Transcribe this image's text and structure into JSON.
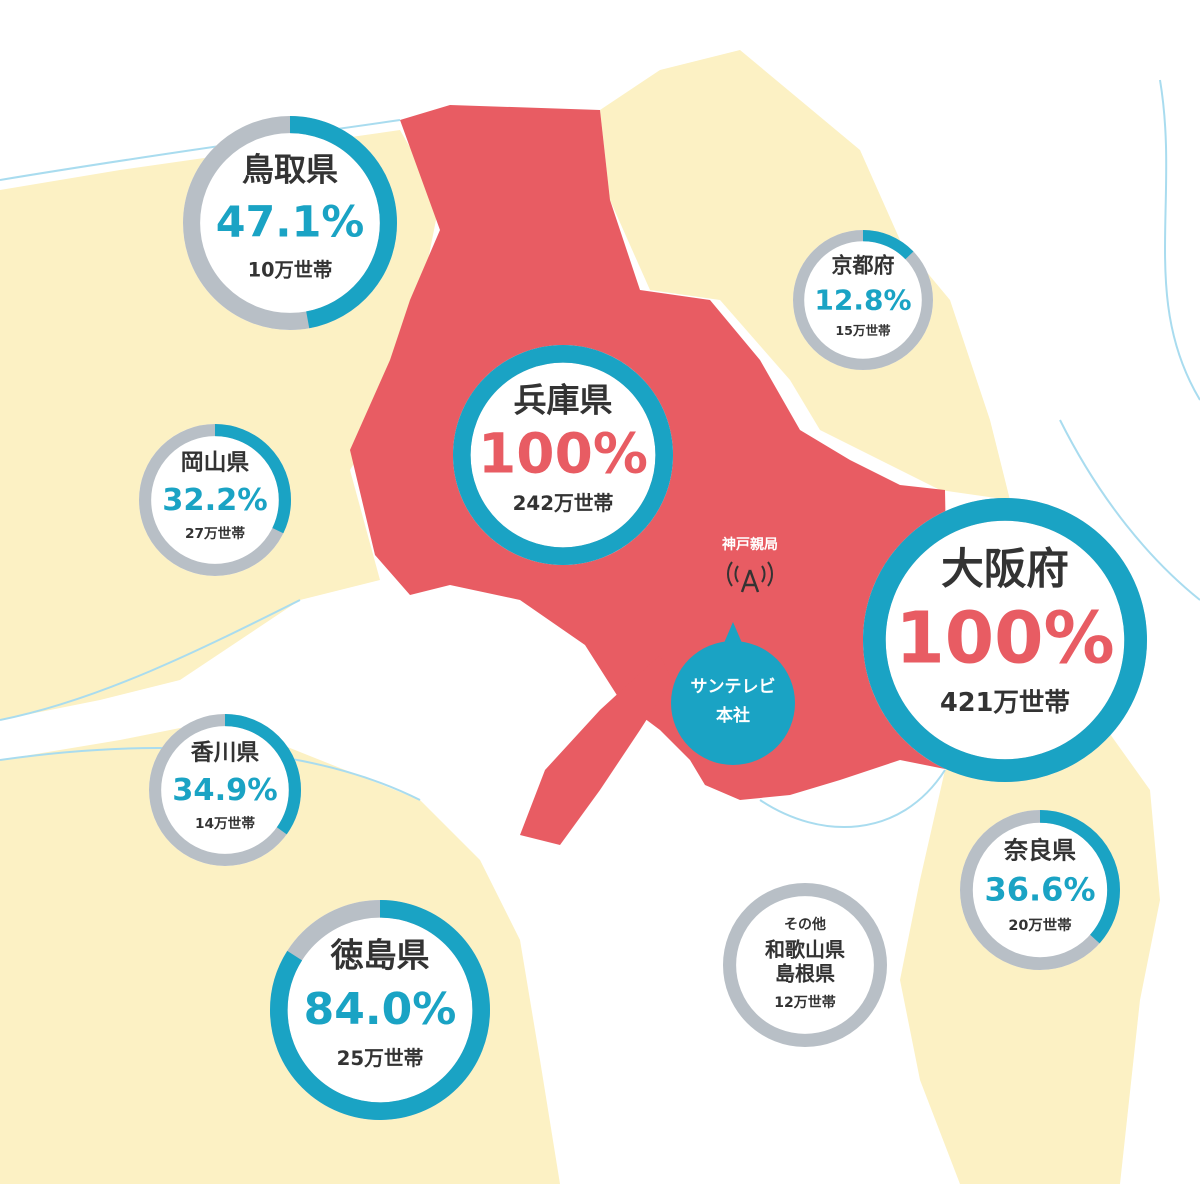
{
  "regions": [
    {
      "name": [
        "鳥取県"
      ],
      "share": {
        "value": 47.1,
        "label": "47.1%"
      },
      "households": "10万世帯",
      "color": "#1aa3c4"
    },
    {
      "name": [
        "京都府"
      ],
      "share": {
        "value": 12.8,
        "label": "12.8%"
      },
      "households": "15万世帯",
      "color": "#1aa3c4"
    },
    {
      "name": [
        "兵庫県"
      ],
      "share": {
        "value": 100,
        "label": "100%"
      },
      "households": "242万世帯",
      "color": "#e85c63"
    },
    {
      "name": [
        "岡山県"
      ],
      "share": {
        "value": 32.2,
        "label": "32.2%"
      },
      "households": "27万世帯",
      "color": "#1aa3c4"
    },
    {
      "name": [
        "大阪府"
      ],
      "share": {
        "value": 100,
        "label": "100%"
      },
      "households": "421万世帯",
      "color": "#e85c63"
    },
    {
      "name": [
        "香川県"
      ],
      "share": {
        "value": 34.9,
        "label": "34.9%"
      },
      "households": "14万世帯",
      "color": "#1aa3c4"
    },
    {
      "name": [
        "奈良県"
      ],
      "share": {
        "value": 36.6,
        "label": "36.6%"
      },
      "households": "20万世帯",
      "color": "#1aa3c4"
    },
    {
      "name": [
        "徳島県"
      ],
      "share": {
        "value": 84.0,
        "label": "84.0%"
      },
      "households": "25万世帯",
      "color": "#1aa3c4"
    },
    {
      "name": [
        "その他",
        "和歌山県",
        "島根県"
      ],
      "households": "12万世帯"
    }
  ],
  "station": {
    "label": "神戸親局"
  },
  "headquarters": {
    "label": [
      "サンテレビ",
      "本社"
    ]
  }
}
